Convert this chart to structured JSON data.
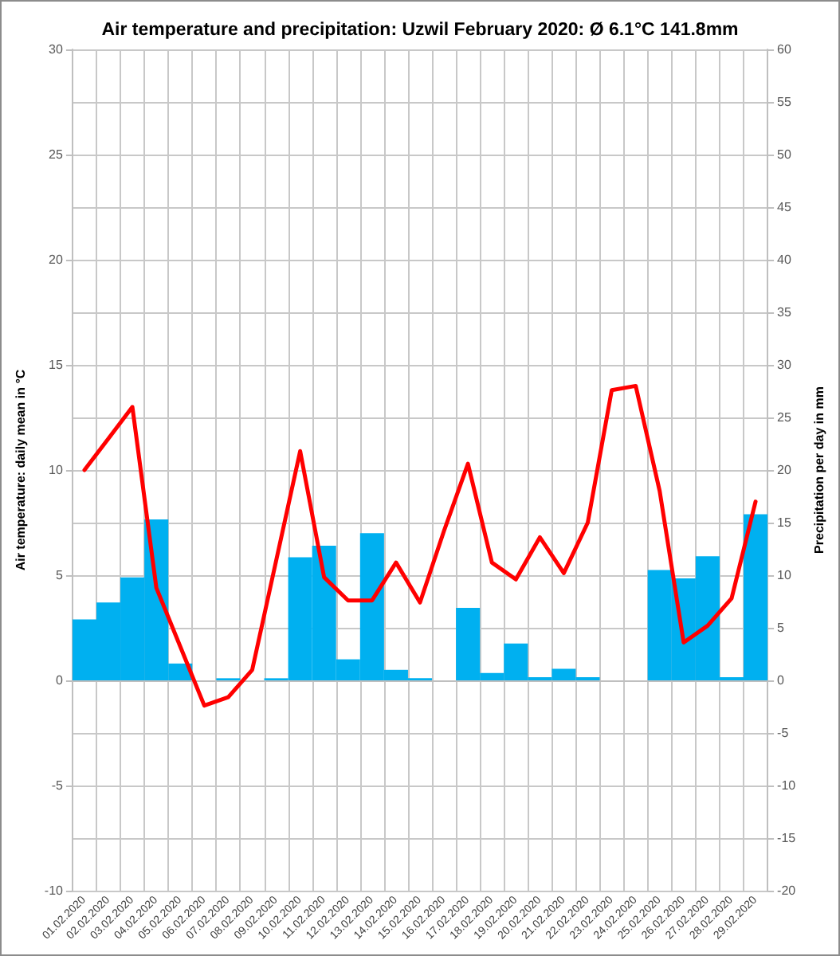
{
  "chart_data": {
    "type": "bar",
    "title": "Air temperature and precipitation: Uzwil February 2020: Ø 6.1°C 141.8mm",
    "ylabel": "Air temperature: daily mean in °C",
    "y2label": "Precipitation per day in mm",
    "categories": [
      "01.02.2020",
      "02.02.2020",
      "03.02.2020",
      "04.02.2020",
      "05.02.2020",
      "06.02.2020",
      "07.02.2020",
      "08.02.2020",
      "09.02.2020",
      "10.02.2020",
      "11.02.2020",
      "12.02.2020",
      "13.02.2020",
      "14.02.2020",
      "15.02.2020",
      "16.02.2020",
      "17.02.2020",
      "18.02.2020",
      "19.02.2020",
      "20.02.2020",
      "21.02.2020",
      "22.02.2020",
      "23.02.2020",
      "24.02.2020",
      "25.02.2020",
      "26.02.2020",
      "27.02.2020",
      "28.02.2020",
      "29.02.2020"
    ],
    "series": [
      {
        "type": "bar",
        "axis": "y2",
        "color": "#00b0f0",
        "values": [
          5.8,
          7.4,
          9.8,
          15.3,
          1.6,
          0,
          0.2,
          0,
          0.2,
          11.7,
          12.8,
          2.0,
          14.0,
          1.0,
          0.2,
          0,
          6.9,
          0.7,
          3.5,
          0.3,
          1.1,
          0.3,
          0,
          0,
          10.5,
          9.7,
          11.8,
          0.3,
          15.8
        ]
      },
      {
        "type": "line",
        "axis": "y",
        "color": "#ff0000",
        "values": [
          10.0,
          11.5,
          13.0,
          4.4,
          1.6,
          -1.2,
          -0.8,
          0.5,
          5.7,
          10.9,
          4.9,
          3.8,
          3.8,
          5.6,
          3.7,
          7.1,
          10.3,
          5.6,
          4.8,
          6.8,
          5.1,
          7.5,
          13.8,
          14.0,
          9.0,
          1.8,
          2.6,
          3.9,
          8.5
        ]
      }
    ],
    "ylim": [
      -10,
      30
    ],
    "yticks": [
      -10,
      -5,
      0,
      5,
      10,
      15,
      20,
      25,
      30
    ],
    "y2lim": [
      -20,
      60
    ],
    "y2ticks": [
      -20,
      -15,
      -10,
      -5,
      0,
      5,
      10,
      15,
      20,
      25,
      30,
      35,
      40,
      45,
      50,
      55,
      60
    ],
    "grid": true,
    "marker": "none",
    "line_style": "solid"
  }
}
